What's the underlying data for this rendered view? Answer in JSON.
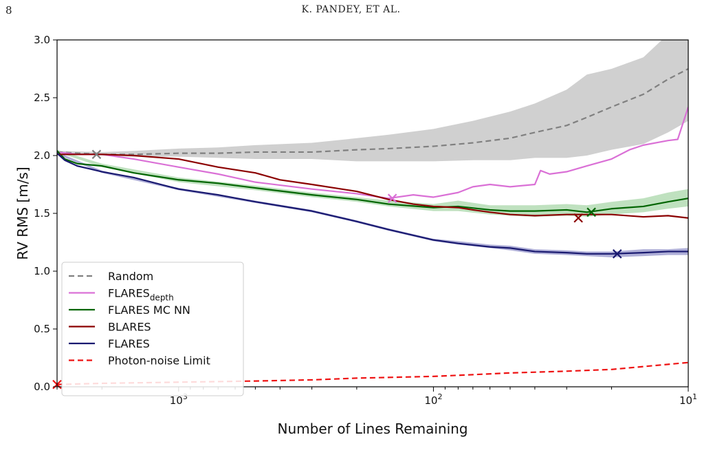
{
  "page": {
    "page_number": "8",
    "running_head": "K. PANDEY, ET AL."
  },
  "chart_data": {
    "type": "line",
    "title": "",
    "xlabel": "Number of Lines Remaining",
    "ylabel": "RV RMS [m/s]",
    "x_scale": "log",
    "x_reversed": true,
    "xlim": [
      3000,
      10
    ],
    "ylim": [
      0,
      3
    ],
    "x_ticks": [
      {
        "value": 1000,
        "base": "10",
        "exp": "3"
      },
      {
        "value": 100,
        "base": "10",
        "exp": "2"
      },
      {
        "value": 10,
        "base": "10",
        "exp": "1"
      }
    ],
    "y_ticks": [
      "0.0",
      "0.5",
      "1.0",
      "1.5",
      "2.0",
      "2.5",
      "3.0"
    ],
    "grid": false,
    "legend_position": "lower-left",
    "series": [
      {
        "name": "Random",
        "color": "#808080",
        "style": "dashed",
        "band_color": "#c8c8c8",
        "points": [
          [
            3000,
            2.03
          ],
          [
            2000,
            2.01
          ],
          [
            1500,
            2.01
          ],
          [
            1000,
            2.02
          ],
          [
            700,
            2.02
          ],
          [
            500,
            2.03
          ],
          [
            300,
            2.03
          ],
          [
            200,
            2.05
          ],
          [
            150,
            2.06
          ],
          [
            100,
            2.08
          ],
          [
            70,
            2.11
          ],
          [
            50,
            2.15
          ],
          [
            40,
            2.2
          ],
          [
            30,
            2.26
          ],
          [
            25,
            2.33
          ],
          [
            20,
            2.42
          ],
          [
            15,
            2.53
          ],
          [
            12,
            2.66
          ],
          [
            10,
            2.75
          ]
        ],
        "band": [
          [
            3000,
            2.02,
            2.04
          ],
          [
            2000,
            2.0,
            2.03
          ],
          [
            1500,
            1.99,
            2.04
          ],
          [
            1000,
            1.99,
            2.06
          ],
          [
            700,
            1.98,
            2.07
          ],
          [
            500,
            1.97,
            2.09
          ],
          [
            300,
            1.97,
            2.11
          ],
          [
            200,
            1.95,
            2.15
          ],
          [
            150,
            1.95,
            2.18
          ],
          [
            100,
            1.95,
            2.23
          ],
          [
            70,
            1.96,
            2.3
          ],
          [
            50,
            1.96,
            2.38
          ],
          [
            40,
            1.98,
            2.45
          ],
          [
            30,
            1.98,
            2.57
          ],
          [
            25,
            2.0,
            2.7
          ],
          [
            20,
            2.05,
            2.75
          ],
          [
            15,
            2.1,
            2.85
          ],
          [
            12,
            2.2,
            3.05
          ],
          [
            10,
            2.3,
            3.1
          ]
        ],
        "marker": [
          2100,
          2.01
        ]
      },
      {
        "name": "FLARES_depth",
        "label_main": "FLARES",
        "label_sub": "depth",
        "color": "#da70d6",
        "style": "solid",
        "points": [
          [
            3000,
            2.03
          ],
          [
            2500,
            2.01
          ],
          [
            2000,
            2.01
          ],
          [
            1500,
            1.97
          ],
          [
            1000,
            1.9
          ],
          [
            700,
            1.84
          ],
          [
            500,
            1.77
          ],
          [
            300,
            1.71
          ],
          [
            200,
            1.67
          ],
          [
            150,
            1.63
          ],
          [
            120,
            1.66
          ],
          [
            100,
            1.64
          ],
          [
            80,
            1.68
          ],
          [
            70,
            1.73
          ],
          [
            60,
            1.75
          ],
          [
            50,
            1.73
          ],
          [
            40,
            1.75
          ],
          [
            38,
            1.87
          ],
          [
            35,
            1.84
          ],
          [
            30,
            1.86
          ],
          [
            25,
            1.91
          ],
          [
            20,
            1.97
          ],
          [
            17,
            2.05
          ],
          [
            15,
            2.09
          ],
          [
            12,
            2.13
          ],
          [
            11,
            2.14
          ],
          [
            10,
            2.42
          ]
        ],
        "marker": [
          145,
          1.63
        ]
      },
      {
        "name": "FLARES MC NN",
        "color": "#006400",
        "style": "solid",
        "band_color": "#b4dcb4",
        "points": [
          [
            3000,
            2.04
          ],
          [
            2800,
            1.97
          ],
          [
            2500,
            1.93
          ],
          [
            2000,
            1.91
          ],
          [
            1500,
            1.85
          ],
          [
            1000,
            1.79
          ],
          [
            700,
            1.76
          ],
          [
            500,
            1.72
          ],
          [
            300,
            1.66
          ],
          [
            200,
            1.62
          ],
          [
            150,
            1.58
          ],
          [
            100,
            1.55
          ],
          [
            80,
            1.56
          ],
          [
            60,
            1.53
          ],
          [
            50,
            1.52
          ],
          [
            40,
            1.52
          ],
          [
            30,
            1.53
          ],
          [
            25,
            1.51
          ],
          [
            20,
            1.54
          ],
          [
            15,
            1.56
          ],
          [
            12,
            1.6
          ],
          [
            10,
            1.63
          ]
        ],
        "band": [
          [
            3000,
            2.03,
            2.05
          ],
          [
            2000,
            1.9,
            1.93
          ],
          [
            1000,
            1.77,
            1.81
          ],
          [
            500,
            1.7,
            1.74
          ],
          [
            300,
            1.64,
            1.68
          ],
          [
            200,
            1.6,
            1.64
          ],
          [
            150,
            1.56,
            1.61
          ],
          [
            100,
            1.52,
            1.58
          ],
          [
            80,
            1.52,
            1.61
          ],
          [
            60,
            1.49,
            1.57
          ],
          [
            50,
            1.48,
            1.57
          ],
          [
            40,
            1.47,
            1.57
          ],
          [
            30,
            1.48,
            1.58
          ],
          [
            25,
            1.47,
            1.57
          ],
          [
            20,
            1.49,
            1.6
          ],
          [
            15,
            1.51,
            1.63
          ],
          [
            12,
            1.54,
            1.68
          ],
          [
            10,
            1.56,
            1.71
          ]
        ],
        "marker": [
          24,
          1.51
        ]
      },
      {
        "name": "BLARES",
        "color": "#8b0000",
        "style": "solid",
        "points": [
          [
            3000,
            2.01
          ],
          [
            2000,
            2.01
          ],
          [
            1500,
            2.0
          ],
          [
            1000,
            1.97
          ],
          [
            700,
            1.9
          ],
          [
            500,
            1.85
          ],
          [
            400,
            1.79
          ],
          [
            300,
            1.75
          ],
          [
            200,
            1.69
          ],
          [
            150,
            1.62
          ],
          [
            120,
            1.58
          ],
          [
            100,
            1.56
          ],
          [
            80,
            1.55
          ],
          [
            70,
            1.53
          ],
          [
            60,
            1.51
          ],
          [
            50,
            1.49
          ],
          [
            40,
            1.48
          ],
          [
            30,
            1.49
          ],
          [
            25,
            1.49
          ],
          [
            20,
            1.49
          ],
          [
            15,
            1.47
          ],
          [
            12,
            1.48
          ],
          [
            10,
            1.46
          ]
        ],
        "marker": [
          27,
          1.46
        ]
      },
      {
        "name": "FLARES",
        "color": "#191970",
        "style": "solid",
        "band_color": "#a0a0d0",
        "points": [
          [
            3000,
            2.02
          ],
          [
            2800,
            1.96
          ],
          [
            2500,
            1.91
          ],
          [
            2000,
            1.86
          ],
          [
            1500,
            1.81
          ],
          [
            1000,
            1.71
          ],
          [
            700,
            1.66
          ],
          [
            500,
            1.6
          ],
          [
            300,
            1.52
          ],
          [
            200,
            1.43
          ],
          [
            150,
            1.36
          ],
          [
            100,
            1.27
          ],
          [
            80,
            1.24
          ],
          [
            60,
            1.21
          ],
          [
            50,
            1.2
          ],
          [
            40,
            1.17
          ],
          [
            30,
            1.16
          ],
          [
            25,
            1.15
          ],
          [
            20,
            1.15
          ],
          [
            15,
            1.16
          ],
          [
            12,
            1.17
          ],
          [
            10,
            1.17
          ]
        ],
        "band": [
          [
            3000,
            2.01,
            2.03
          ],
          [
            2000,
            1.85,
            1.87
          ],
          [
            1000,
            1.7,
            1.72
          ],
          [
            500,
            1.59,
            1.61
          ],
          [
            300,
            1.51,
            1.53
          ],
          [
            200,
            1.42,
            1.44
          ],
          [
            150,
            1.35,
            1.37
          ],
          [
            100,
            1.26,
            1.28
          ],
          [
            80,
            1.23,
            1.26
          ],
          [
            60,
            1.2,
            1.23
          ],
          [
            50,
            1.18,
            1.22
          ],
          [
            40,
            1.15,
            1.19
          ],
          [
            30,
            1.14,
            1.18
          ],
          [
            25,
            1.13,
            1.17
          ],
          [
            20,
            1.12,
            1.17
          ],
          [
            15,
            1.13,
            1.19
          ],
          [
            12,
            1.14,
            1.19
          ],
          [
            10,
            1.14,
            1.2
          ]
        ],
        "marker": [
          19,
          1.15
        ]
      },
      {
        "name": "Photon-noise Limit",
        "color": "#ee1111",
        "style": "dashed",
        "points": [
          [
            3000,
            0.02
          ],
          [
            2000,
            0.03
          ],
          [
            1000,
            0.04
          ],
          [
            500,
            0.05
          ],
          [
            300,
            0.06
          ],
          [
            200,
            0.075
          ],
          [
            100,
            0.09
          ],
          [
            70,
            0.105
          ],
          [
            50,
            0.12
          ],
          [
            30,
            0.135
          ],
          [
            20,
            0.15
          ],
          [
            15,
            0.175
          ],
          [
            10,
            0.21
          ]
        ],
        "marker": [
          3000,
          0.02
        ]
      }
    ]
  }
}
